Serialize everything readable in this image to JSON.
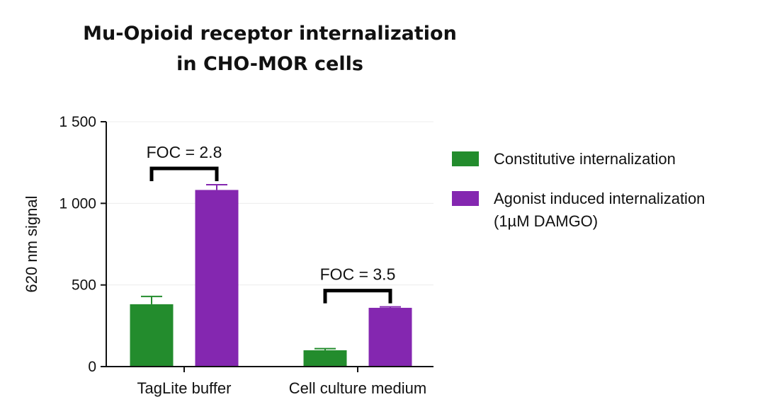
{
  "chart_data": {
    "type": "bar",
    "title_lines": [
      "Mu-Opioid receptor internalization",
      "in CHO-MOR cells"
    ],
    "xlabel": "",
    "ylabel": "620 nm signal",
    "ylim": [
      0,
      1500
    ],
    "yticks": [
      0,
      500,
      1000,
      1500
    ],
    "ytick_labels": [
      "0",
      "500",
      "1 000",
      "1 500"
    ],
    "grid": "horizontal",
    "legend_position": "right",
    "categories": [
      "TagLite buffer",
      "Cell culture medium"
    ],
    "series": [
      {
        "name": "Constitutive internalization",
        "color": "#238c2d",
        "values": [
          382,
          100
        ],
        "errors": [
          48,
          10
        ]
      },
      {
        "name": "Agonist induced internalization",
        "name_line2": "(1µM DAMGO)",
        "color": "#8427b0",
        "values": [
          1082,
          360
        ],
        "errors": [
          32,
          6
        ]
      }
    ],
    "annotations": [
      {
        "text": "FOC = 2.8",
        "category": "TagLite buffer"
      },
      {
        "text": "FOC = 3.5",
        "category": "Cell culture medium"
      }
    ]
  }
}
